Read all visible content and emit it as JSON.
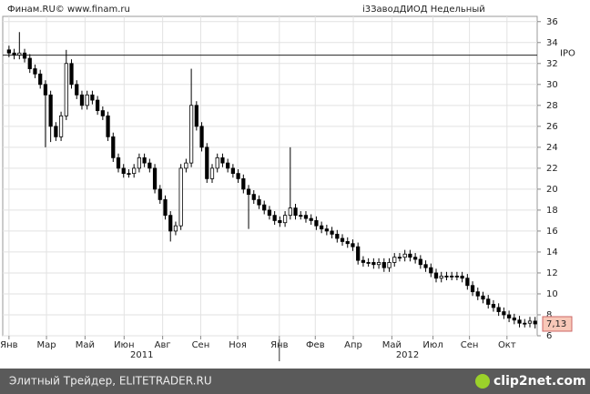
{
  "chart_data": {
    "type": "candlestick",
    "source": "Финам.RU©  www.finam.ru",
    "title": "i3ЗаводДИОД Недельный",
    "open": [
      33.3,
      33,
      32.8,
      33,
      32.5,
      31.5,
      31,
      30,
      29,
      26,
      25,
      27,
      32,
      30,
      29,
      28,
      29,
      28.5,
      27.5,
      27,
      25,
      23,
      22,
      21.5,
      21.5,
      22,
      23,
      22.5,
      22,
      20,
      19,
      17.5,
      16,
      16.5,
      22,
      22.5,
      28,
      26,
      24,
      21,
      22,
      23,
      22.5,
      22,
      21.5,
      21,
      20,
      19.5,
      19,
      18.5,
      18,
      17.5,
      17,
      16.8,
      17.5,
      18.2,
      17.5,
      17.5,
      17.2,
      17,
      16.5,
      16.2,
      16,
      15.7,
      15.3,
      15,
      14.8,
      14.5,
      13.2,
      13,
      13,
      12.8,
      13,
      12.5,
      13,
      13.5,
      13.5,
      13.8,
      13.5,
      13.3,
      12.8,
      12.5,
      12,
      11.5,
      11.7,
      11.7,
      11.7,
      11.7,
      11.5,
      10.8,
      10.2,
      9.8,
      9.5,
      9,
      8.7,
      8.3,
      8,
      7.7,
      7.5,
      7.2,
      7.2,
      7.4
    ],
    "high": [
      33.7,
      33.4,
      35,
      33.4,
      32.9,
      31.9,
      31.4,
      30.4,
      29.4,
      26.4,
      27.4,
      33.3,
      32.4,
      30.4,
      29.4,
      29.4,
      29.4,
      28.9,
      27.9,
      27.4,
      25.4,
      23.4,
      22.4,
      21.9,
      22.4,
      23.4,
      23.4,
      22.9,
      22.4,
      20.4,
      19.4,
      17.9,
      16.9,
      22.4,
      22.9,
      31.5,
      28.4,
      26.4,
      24.4,
      22.4,
      23.4,
      23.4,
      22.9,
      22.4,
      21.9,
      21.4,
      20.4,
      19.9,
      19.4,
      18.9,
      18.4,
      17.9,
      17.4,
      17.9,
      24,
      18.6,
      17.9,
      17.9,
      17.6,
      17.4,
      16.9,
      16.6,
      16.4,
      16.1,
      15.7,
      15.4,
      15.2,
      14.9,
      13.6,
      13.4,
      13.4,
      13.4,
      13.4,
      13.4,
      13.9,
      13.9,
      14.2,
      14.2,
      13.9,
      13.7,
      13.2,
      12.9,
      12.4,
      12.1,
      12.1,
      12.1,
      12.1,
      12.1,
      11.9,
      11.2,
      10.6,
      10.2,
      9.9,
      9.4,
      9.1,
      8.7,
      8.4,
      8.1,
      7.9,
      7.6,
      7.8,
      7.8
    ],
    "low": [
      32.6,
      32.4,
      32.4,
      32.1,
      31.1,
      30.6,
      29.6,
      24,
      24.5,
      24.6,
      24.6,
      26.6,
      29.6,
      28.6,
      27.6,
      27.6,
      28.1,
      27.1,
      26.6,
      24.6,
      22.6,
      21.6,
      21.1,
      21.1,
      21.1,
      21.6,
      22.1,
      21.6,
      19.6,
      18.6,
      17.1,
      15,
      15.6,
      16.1,
      21.6,
      22.1,
      25.6,
      23.6,
      20.6,
      20.6,
      21.6,
      22.1,
      21.6,
      21.1,
      20.6,
      19.6,
      16.2,
      18.6,
      18.1,
      17.6,
      17.1,
      16.6,
      16.4,
      16.4,
      17.1,
      17.1,
      17.1,
      16.8,
      16.6,
      16.1,
      15.8,
      15.6,
      15.3,
      14.9,
      14.6,
      14.4,
      14.1,
      12.8,
      12.6,
      12.6,
      12.4,
      12.4,
      12.1,
      12.1,
      12.6,
      13.1,
      13.1,
      13.1,
      12.9,
      12.4,
      12.1,
      11.6,
      11.1,
      11.1,
      11.3,
      11.3,
      11.3,
      11.1,
      10.4,
      9.8,
      9.4,
      9.1,
      8.6,
      8.3,
      7.9,
      7.6,
      7.3,
      7.1,
      6.8,
      6.8,
      6.8,
      6.7
    ],
    "close": [
      33,
      32.8,
      33,
      32.5,
      31.5,
      31,
      30,
      29,
      26,
      25,
      27,
      32,
      30,
      29,
      28,
      29,
      28.5,
      27.5,
      27,
      25,
      23,
      22,
      21.5,
      21.5,
      22,
      23,
      22.5,
      22,
      20,
      19,
      17.5,
      16,
      16.5,
      22,
      22.5,
      28,
      26,
      24,
      21,
      22,
      23,
      22.5,
      22,
      21.5,
      21,
      20,
      19.5,
      19,
      18.5,
      18,
      17.5,
      17,
      16.8,
      17.5,
      18.2,
      17.5,
      17.5,
      17.2,
      17,
      16.5,
      16.2,
      16,
      15.7,
      15.3,
      15,
      14.8,
      14.5,
      13.2,
      13,
      13,
      12.8,
      13,
      12.5,
      13,
      13.5,
      13.5,
      13.8,
      13.5,
      13.3,
      12.8,
      12.5,
      12,
      11.5,
      11.7,
      11.7,
      11.7,
      11.7,
      11.5,
      10.8,
      10.2,
      9.8,
      9.5,
      9,
      8.7,
      8.3,
      8,
      7.7,
      7.5,
      7.2,
      7.2,
      7.4,
      7.13
    ],
    "last_label": "7,13",
    "ipo": {
      "value": 32.8,
      "label": "IPO"
    },
    "xlim": [
      -1.2,
      101.4
    ],
    "xticks": [
      {
        "value": 0,
        "label": "Янв"
      },
      {
        "value": 7.2,
        "label": "Мар"
      },
      {
        "value": 14.6,
        "label": "Май"
      },
      {
        "value": 22.1,
        "label": "Июн"
      },
      {
        "value": 29.5,
        "label": "Авг"
      },
      {
        "value": 36.8,
        "label": "Сен"
      },
      {
        "value": 43.9,
        "label": "Ноя"
      },
      {
        "value": 51.9,
        "label": "Янв"
      },
      {
        "value": 58.8,
        "label": "Фев"
      },
      {
        "value": 66.1,
        "label": "Апр"
      },
      {
        "value": 73.5,
        "label": "Май"
      },
      {
        "value": 81.4,
        "label": "Июл"
      },
      {
        "value": 88.4,
        "label": "Сен"
      },
      {
        "value": 95.6,
        "label": "Окт"
      }
    ],
    "years": [
      {
        "value": 25.5,
        "label": "2011"
      },
      {
        "value": 76.5,
        "label": "2012"
      }
    ],
    "ylim": [
      6,
      36.5
    ],
    "yticks": [
      6,
      8,
      10,
      12,
      14,
      16,
      18,
      20,
      22,
      24,
      26,
      28,
      30,
      32,
      34,
      36
    ],
    "grid": true
  },
  "footer": {
    "text": "Элитный Трейдер, ELITETRADER.RU",
    "logo": "clip2net.com"
  }
}
